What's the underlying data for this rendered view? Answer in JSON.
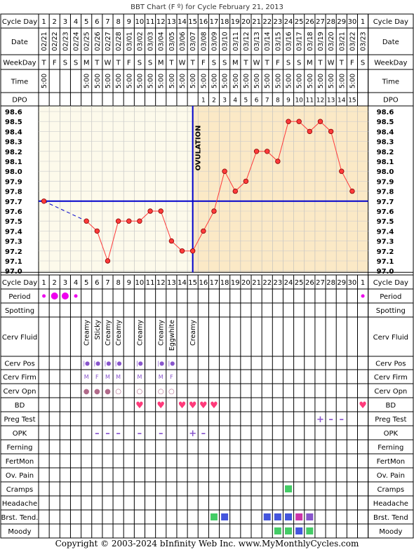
{
  "title": "BBT Chart (F º) for Cycle February 21, 2013",
  "copyright": "Copyright © 2003-2024 bInfinity Web Inc.     www.MyMonthlyCycles.com",
  "colors": {
    "temp_line": "#ff3b3b",
    "dot_fill": "#ff3b3b",
    "coverline": "#0000cc",
    "pre_bg": "#fdfaeb",
    "post_bg": "#fbe9c6",
    "period": "#ee00ee",
    "heart": "#ff3a7a",
    "green": "#44cc66",
    "blue": "#4455dd",
    "magenta": "#cc33aa",
    "purple": "#8855cc"
  },
  "row_labels": {
    "cycle_day": "Cycle Day",
    "date": "Date",
    "weekday": "WeekDay",
    "time": "Time",
    "dpo": "DPO",
    "period": "Period",
    "spotting": "Spotting",
    "cerv_fluid": "Cerv Fluid",
    "cerv_pos": "Cerv Pos",
    "cerv_firm": "Cerv Firm",
    "cerv_opn": "Cerv Opn",
    "bd": "BD",
    "preg_test": "Preg Test",
    "opk": "OPK",
    "ferning": "Ferning",
    "fertmon": "FertMon",
    "ov_pain": "Ov. Pain",
    "cramps": "Cramps",
    "headache": "Headache",
    "brst_tend_left": "Brst. Tend.",
    "brst_tend_right": "Brst. Tend",
    "moody": "Moody"
  },
  "ovulation_label": "OVULATION",
  "chart_data": {
    "type": "line",
    "title": "BBT Chart (F º) for Cycle February 21, 2013",
    "ylim": [
      97.0,
      98.6
    ],
    "y_ticks": [
      "98.6",
      "98.5",
      "98.4",
      "98.3",
      "98.2",
      "98.1",
      "98.0",
      "97.9",
      "97.8",
      "97.7",
      "97.6",
      "97.5",
      "97.4",
      "97.3",
      "97.2",
      "97.1",
      "97.0"
    ],
    "x": [
      "1",
      "2",
      "3",
      "4",
      "5",
      "6",
      "7",
      "8",
      "9",
      "10",
      "11",
      "12",
      "13",
      "14",
      "15",
      "16",
      "17",
      "18",
      "19",
      "20",
      "21",
      "22",
      "23",
      "24",
      "25",
      "26",
      "27",
      "28",
      "29",
      "30",
      "1"
    ],
    "dates": [
      "02/21",
      "02/22",
      "02/23",
      "02/24",
      "02/25",
      "02/26",
      "02/27",
      "02/28",
      "03/01",
      "03/02",
      "03/03",
      "03/04",
      "03/05",
      "03/06",
      "03/07",
      "03/08",
      "03/09",
      "03/10",
      "03/11",
      "03/12",
      "03/13",
      "03/14",
      "03/15",
      "03/16",
      "03/17",
      "03/18",
      "03/19",
      "03/20",
      "03/21",
      "03/22",
      "03/23"
    ],
    "weekdays": [
      "T",
      "F",
      "S",
      "S",
      "M",
      "T",
      "W",
      "T",
      "F",
      "S",
      "S",
      "M",
      "T",
      "W",
      "T",
      "F",
      "S",
      "S",
      "M",
      "T",
      "W",
      "T",
      "F",
      "S",
      "S",
      "M",
      "T",
      "W",
      "T",
      "F",
      "S"
    ],
    "times": [
      "5:00",
      "",
      "",
      "",
      "5:00",
      "5:00",
      "5:00",
      "5:00",
      "5:00",
      "5:00",
      "5:00",
      "5:00",
      "5:00",
      "5:00",
      "5:00",
      "5:00",
      "5:00",
      "5:00",
      "5:00",
      "5:00",
      "5:00",
      "5:00",
      "5:00",
      "5:00",
      "5:00",
      "5:00",
      "5:00",
      "5:00",
      "5:00",
      "5:00",
      ""
    ],
    "dpo": [
      "",
      "",
      "",
      "",
      "",
      "",
      "",
      "",
      "",
      "",
      "",
      "",
      "",
      "",
      "",
      "1",
      "2",
      "3",
      "4",
      "5",
      "6",
      "7",
      "8",
      "9",
      "10",
      "11",
      "12",
      "13",
      "14",
      "15",
      ""
    ],
    "temps": [
      97.7,
      null,
      null,
      null,
      97.5,
      97.4,
      97.1,
      97.5,
      97.5,
      97.5,
      97.6,
      97.6,
      97.3,
      97.2,
      97.2,
      97.4,
      97.6,
      98.0,
      97.8,
      97.9,
      98.2,
      98.2,
      98.1,
      98.5,
      98.5,
      98.4,
      98.5,
      98.4,
      98.0,
      97.8,
      null
    ],
    "coverline": 97.7,
    "ovulation_day": 15,
    "period": [
      "small",
      "large",
      "large",
      "small",
      "",
      "",
      "",
      "",
      "",
      "",
      "",
      "",
      "",
      "",
      "",
      "",
      "",
      "",
      "",
      "",
      "",
      "",
      "",
      "",
      "",
      "",
      "",
      "",
      "",
      "",
      "small"
    ],
    "cerv_fluid": [
      "",
      "",
      "",
      "",
      "Creamy",
      "Sticky",
      "Creamy",
      "Creamy",
      "",
      "Creamy",
      "",
      "Creamy",
      "Eggwhite",
      "",
      "Creamy",
      "",
      "",
      "",
      "",
      "",
      "",
      "",
      "",
      "",
      "",
      "",
      "",
      "",
      "",
      "",
      ""
    ],
    "cerv_pos": [
      "",
      "",
      "",
      "",
      "|●",
      "|●",
      "|●",
      "|●",
      "",
      "|●",
      "",
      "|●",
      "|●",
      "",
      "",
      "",
      "",
      "",
      "",
      "",
      "",
      "",
      "",
      "",
      "",
      "",
      "",
      "",
      "",
      "",
      ""
    ],
    "cerv_firm": [
      "",
      "",
      "",
      "",
      "M",
      "F",
      "M",
      "M",
      "",
      "M",
      "",
      "M",
      "F",
      "",
      "",
      "",
      "",
      "",
      "",
      "",
      "",
      "",
      "",
      "",
      "",
      "",
      "",
      "",
      "",
      "",
      ""
    ],
    "cerv_opn": [
      "",
      "",
      "",
      "",
      "●",
      "●",
      "●",
      "○",
      "",
      "○",
      "",
      "○",
      "○",
      "",
      "",
      "",
      "",
      "",
      "",
      "",
      "",
      "",
      "",
      "",
      "",
      "",
      "",
      "",
      "",
      "",
      ""
    ],
    "bd": [
      10,
      12,
      14,
      15,
      16,
      17,
      31
    ],
    "preg_test": [
      "+",
      "–",
      "–"
    ],
    "preg_test_days": [
      27,
      28,
      29
    ],
    "opk": [
      "–",
      "–",
      "–",
      "–",
      "–",
      "+",
      "–"
    ],
    "opk_days": [
      6,
      7,
      8,
      10,
      12,
      15,
      16
    ],
    "cramps": [
      24
    ],
    "brst_tend": [
      {
        "day": 17,
        "color": "green"
      },
      {
        "day": 18,
        "color": "blue"
      },
      {
        "day": 22,
        "color": "blue"
      },
      {
        "day": 23,
        "color": "blue"
      },
      {
        "day": 24,
        "color": "blue"
      },
      {
        "day": 25,
        "color": "magenta"
      },
      {
        "day": 26,
        "color": "purple"
      }
    ],
    "moody": [
      {
        "day": 23,
        "color": "green"
      },
      {
        "day": 24,
        "color": "green"
      },
      {
        "day": 25,
        "color": "blue"
      },
      {
        "day": 26,
        "color": "green"
      }
    ]
  }
}
